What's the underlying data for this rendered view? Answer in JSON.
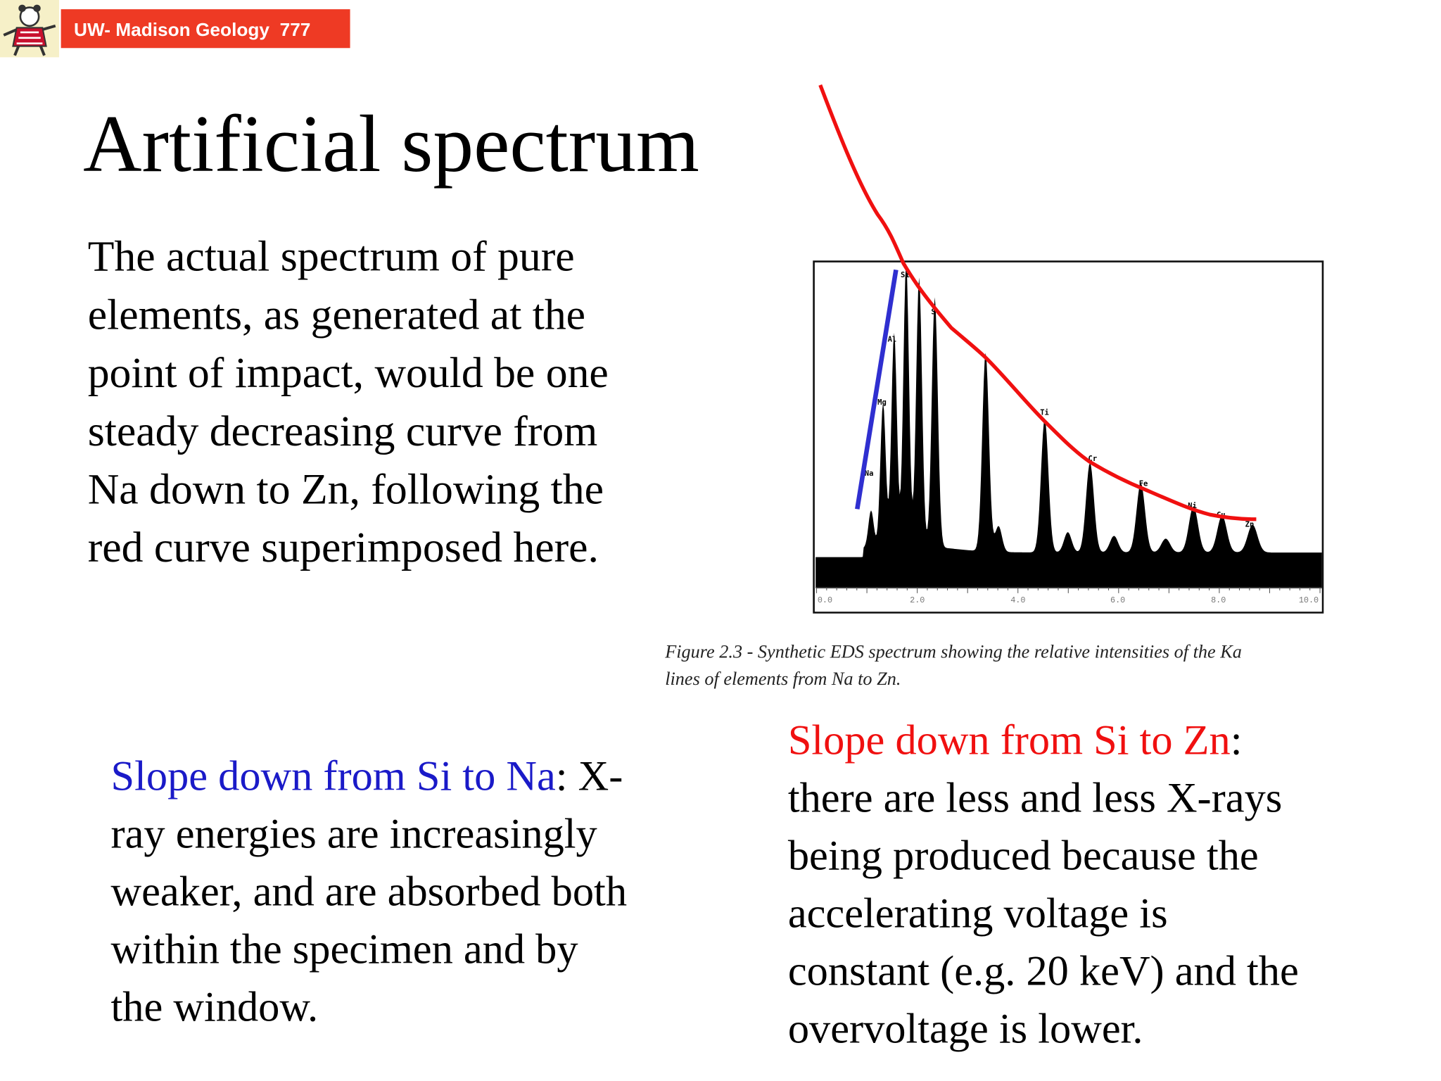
{
  "header": {
    "badge": "UW- Madison Geology  777"
  },
  "title": "Artificial spectrum",
  "body": {
    "lines": [
      "The actual spectrum of pure",
      "elements, as generated at the",
      "point of impact, would be one",
      "steady decreasing curve from",
      "Na down to Zn, following the",
      "red curve superimposed here."
    ]
  },
  "figure": {
    "tick_labels": [
      "0.0",
      "2.0",
      "4.0",
      "6.0",
      "8.0",
      "10.0"
    ],
    "element_labels": [
      "Na",
      "Mg",
      "Al",
      "Si",
      "P",
      "S",
      "Ti",
      "Cr",
      "Fe",
      "Ni",
      "Cu",
      "Zn"
    ],
    "caption": {
      "lines": [
        "Figure 2.3 - Synthetic EDS spectrum showing the relative intensities of the Ka",
        "lines of elements from Na to Zn."
      ]
    }
  },
  "notes": [
    {
      "heading": "Slope down from Si to Na",
      "lines": [
        ": X-",
        "ray energies are increasingly",
        "weaker, and are absorbed both",
        "within the specimen and by",
        "the window."
      ]
    },
    {
      "heading": "Slope down from Si to Zn",
      "lines": [
        ":",
        "there are less and less X-rays",
        "being produced because the",
        "accelerating voltage is",
        "constant (e.g. 20 keV) and the",
        "overvoltage is lower."
      ]
    }
  ]
}
